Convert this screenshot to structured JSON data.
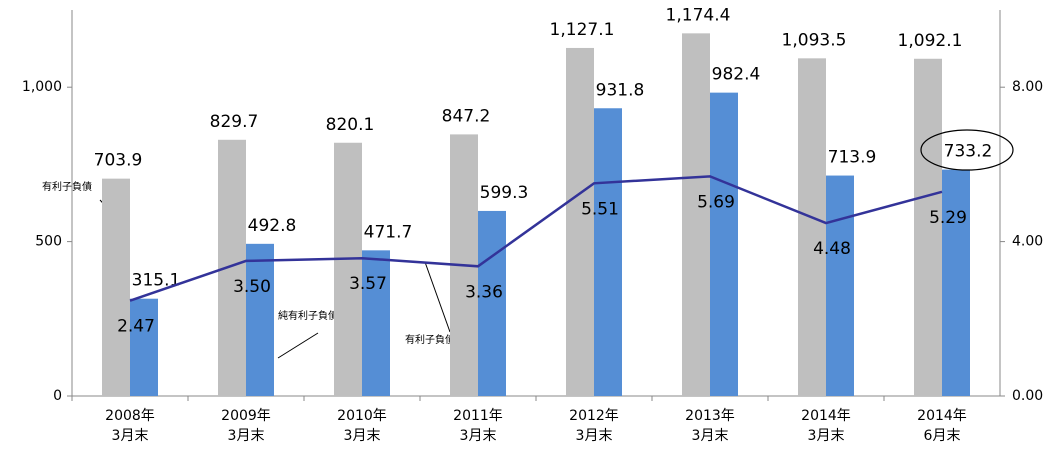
{
  "chart_data": {
    "type": "bar-line",
    "categories": [
      [
        "2008年",
        "3月末"
      ],
      [
        "2009年",
        "3月末"
      ],
      [
        "2010年",
        "3月末"
      ],
      [
        "2011年",
        "3月末"
      ],
      [
        "2012年",
        "3月末"
      ],
      [
        "2013年",
        "3月末"
      ],
      [
        "2014年",
        "3月末"
      ],
      [
        "2014年",
        "6月末"
      ]
    ],
    "series": [
      {
        "name": "有利子負債",
        "type": "bar",
        "color": "#bfbfbf",
        "values": [
          703.9,
          829.7,
          820.1,
          847.2,
          1127.1,
          1174.4,
          1093.5,
          1092.1
        ],
        "value_labels": [
          "703.9",
          "829.7",
          "820.1",
          "847.2",
          "1,127.1",
          "1,174.4",
          "1,093.5",
          "1,092.1"
        ]
      },
      {
        "name": "純有利子負債",
        "type": "bar",
        "color": "#558ed5",
        "values": [
          315.1,
          492.8,
          471.7,
          599.3,
          931.8,
          982.4,
          713.9,
          733.2
        ]
      },
      {
        "name": "有利子負債月商比",
        "type": "line",
        "color": "#333399",
        "axis": "y2",
        "values": [
          2.47,
          3.5,
          3.57,
          3.36,
          5.51,
          5.69,
          4.48,
          5.29
        ],
        "value_labels": [
          "2.47",
          "3.50",
          "3.57",
          "3.36",
          "5.51",
          "5.69",
          "4.48",
          "5.29"
        ]
      }
    ],
    "ylim": [
      0,
      1250
    ],
    "yticks": [
      0,
      500,
      {
        "value": 1000,
        "label": "1,000"
      }
    ],
    "y2lim": [
      0,
      10
    ],
    "y2ticks": [
      {
        "value": 0,
        "label": "0.00"
      },
      {
        "value": 4,
        "label": "4.00"
      },
      {
        "value": 8,
        "label": "8.00"
      }
    ]
  }
}
